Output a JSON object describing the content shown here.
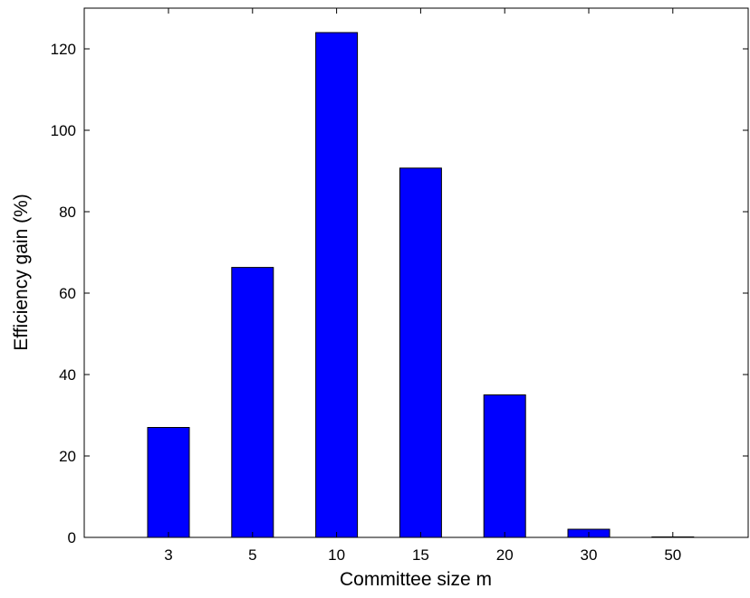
{
  "chart_data": {
    "type": "bar",
    "title": "",
    "xlabel": "Committee size m",
    "ylabel": "Efficiency gain (%)",
    "categories": [
      "3",
      "5",
      "10",
      "15",
      "20",
      "30",
      "50"
    ],
    "values": [
      27,
      66.3,
      124,
      90.7,
      35,
      2,
      0.1
    ],
    "ylim": [
      0,
      130
    ],
    "yticks": [
      0,
      20,
      40,
      60,
      80,
      100,
      120
    ],
    "grid": false,
    "legend": "none",
    "colors": {
      "bar_fill": "#0000ff",
      "bar_stroke": "#000000",
      "axes": "#000000"
    }
  }
}
